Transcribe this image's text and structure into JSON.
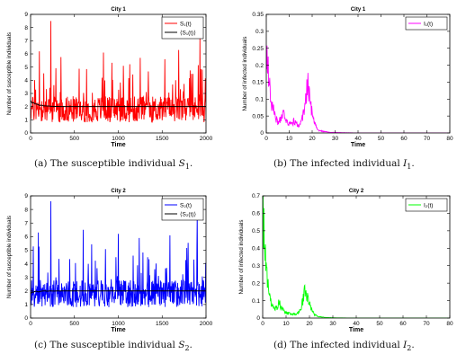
{
  "chart_data": [
    {
      "type": "line",
      "title": "City 1",
      "xlabel": "Time",
      "ylabel": "Number of susceptible individuals",
      "xlim": [
        0,
        2000
      ],
      "ylim": [
        0,
        9
      ],
      "xticks": [
        0,
        500,
        1000,
        1500,
        2000
      ],
      "yticks": [
        0,
        1,
        2,
        3,
        4,
        5,
        6,
        7,
        8,
        9
      ],
      "legend_position": "top-right",
      "series": [
        {
          "name": "S₁(t)",
          "color": "#ff0000",
          "kind": "noisy",
          "baseline": 1.5,
          "spread": 2.0,
          "peaks": [
            [
              230,
              8.5
            ],
            [
              1930,
              7.3
            ],
            [
              100,
              6.2
            ],
            [
              830,
              6.1
            ],
            [
              1690,
              6.3
            ],
            [
              1250,
              5.7
            ],
            [
              1530,
              5.6
            ]
          ]
        },
        {
          "name": "⟨S₁(t)⟩",
          "color": "#000000",
          "kind": "mean",
          "start": 2.4,
          "level": 2.0
        }
      ]
    },
    {
      "type": "line",
      "title": "City 1",
      "xlabel": "Time",
      "ylabel": "Number of infected individuals",
      "xlim": [
        0,
        80
      ],
      "ylim": [
        0,
        0.35
      ],
      "xticks": [
        0,
        10,
        20,
        30,
        40,
        50,
        60,
        70,
        80
      ],
      "yticks": [
        0,
        0.05,
        0.1,
        0.15,
        0.2,
        0.25,
        0.3,
        0.35
      ],
      "legend_position": "top-right",
      "series": [
        {
          "name": "I₁(t)",
          "color": "#ff00ff",
          "kind": "decay",
          "points": [
            [
              0,
              0.2
            ],
            [
              0.5,
              0.22
            ],
            [
              1,
              0.16
            ],
            [
              2,
              0.1
            ],
            [
              3,
              0.07
            ],
            [
              4,
              0.05
            ],
            [
              5,
              0.03
            ],
            [
              6,
              0.04
            ],
            [
              7,
              0.06
            ],
            [
              8,
              0.05
            ],
            [
              9,
              0.035
            ],
            [
              10,
              0.03
            ],
            [
              11,
              0.025
            ],
            [
              12,
              0.035
            ],
            [
              13,
              0.03
            ],
            [
              14,
              0.02
            ],
            [
              15,
              0.03
            ],
            [
              16,
              0.05
            ],
            [
              17,
              0.08
            ],
            [
              18,
              0.155
            ],
            [
              19,
              0.1
            ],
            [
              20,
              0.06
            ],
            [
              21,
              0.03
            ],
            [
              22,
              0.015
            ],
            [
              23,
              0.008
            ],
            [
              25,
              0.004
            ],
            [
              28,
              0.002
            ],
            [
              32,
              0.001
            ],
            [
              40,
              0.0
            ],
            [
              80,
              0.0
            ]
          ]
        }
      ]
    },
    {
      "type": "line",
      "title": "City 2",
      "xlabel": "Time",
      "ylabel": "Number of susceptible individuals",
      "xlim": [
        0,
        2000
      ],
      "ylim": [
        0,
        9
      ],
      "xticks": [
        0,
        500,
        1000,
        1500,
        2000
      ],
      "yticks": [
        0,
        1,
        2,
        3,
        4,
        5,
        6,
        7,
        8,
        9
      ],
      "legend_position": "top-right",
      "series": [
        {
          "name": "S₂(t)",
          "color": "#0000ff",
          "kind": "noisy",
          "baseline": 1.5,
          "spread": 2.0,
          "peaks": [
            [
              230,
              8.6
            ],
            [
              1900,
              7.7
            ],
            [
              90,
              6.3
            ],
            [
              600,
              6.5
            ],
            [
              1000,
              6.2
            ],
            [
              1240,
              5.9
            ],
            [
              1590,
              6.1
            ]
          ]
        },
        {
          "name": "⟨S₂(t)⟩",
          "color": "#000000",
          "kind": "mean",
          "start": 1.9,
          "level": 2.0
        }
      ]
    },
    {
      "type": "line",
      "title": "City 2",
      "xlabel": "Time",
      "ylabel": "Number of infected individuals",
      "xlim": [
        0,
        80
      ],
      "ylim": [
        0,
        0.7
      ],
      "xticks": [
        0,
        10,
        20,
        30,
        40,
        50,
        60,
        70,
        80
      ],
      "yticks": [
        0,
        0.1,
        0.2,
        0.3,
        0.4,
        0.5,
        0.6,
        0.7
      ],
      "legend_position": "top-right",
      "series": [
        {
          "name": "I₂(t)",
          "color": "#00ff00",
          "kind": "decay",
          "points": [
            [
              0,
              0.58
            ],
            [
              0.5,
              0.55
            ],
            [
              1,
              0.35
            ],
            [
              2,
              0.2
            ],
            [
              3,
              0.12
            ],
            [
              4,
              0.07
            ],
            [
              5,
              0.05
            ],
            [
              6,
              0.06
            ],
            [
              7,
              0.09
            ],
            [
              8,
              0.06
            ],
            [
              9,
              0.04
            ],
            [
              10,
              0.03
            ],
            [
              12,
              0.025
            ],
            [
              14,
              0.02
            ],
            [
              16,
              0.04
            ],
            [
              17,
              0.09
            ],
            [
              18,
              0.16
            ],
            [
              19,
              0.12
            ],
            [
              20,
              0.08
            ],
            [
              21,
              0.05
            ],
            [
              22,
              0.02
            ],
            [
              24,
              0.008
            ],
            [
              27,
              0.003
            ],
            [
              32,
              0.001
            ],
            [
              40,
              0.0
            ],
            [
              80,
              0.0
            ]
          ]
        }
      ]
    }
  ],
  "captions": [
    {
      "label": "(a)",
      "text": "The susceptible individual",
      "symbol": "S",
      "sub": "1",
      "end": "."
    },
    {
      "label": "(b)",
      "text": "The infected individual",
      "symbol": "I",
      "sub": "1",
      "end": "."
    },
    {
      "label": "(c)",
      "text": "The susceptible individual",
      "symbol": "S",
      "sub": "2",
      "end": "."
    },
    {
      "label": "(d)",
      "text": "The infected individual",
      "symbol": "I",
      "sub": "2",
      "end": "."
    }
  ]
}
